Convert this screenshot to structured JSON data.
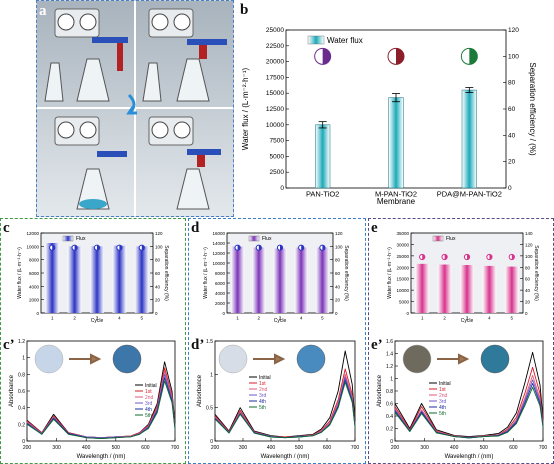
{
  "panel_labels": {
    "a": "a",
    "b": "b",
    "c": "c",
    "d": "d",
    "e": "e",
    "c2": "c’",
    "d2": "d’",
    "e2": "e’"
  },
  "chart_data": [
    {
      "id": "b",
      "type": "bar",
      "categories": [
        "PAN-TiO2",
        "M-PAN-TiO2",
        "PDA@M-PAN-TiO2"
      ],
      "series": [
        {
          "name": "Water flux",
          "values": [
            10000,
            14300,
            15500
          ],
          "errors": [
            500,
            650,
            400
          ]
        }
      ],
      "separation_efficiency": [
        100,
        100,
        100
      ],
      "xlabel": "Membrane",
      "ylabel": "Water flux / (L·m⁻²·h⁻¹)",
      "y2label": "Separation efficiency / (%)",
      "ylim": [
        0,
        25000
      ],
      "y2lim": [
        0,
        120
      ],
      "yticks": [
        0,
        2500,
        5000,
        7500,
        10000,
        12500,
        15000,
        17500,
        20000,
        22500,
        25000
      ],
      "y2ticks": [
        0,
        20,
        40,
        60,
        80,
        100,
        120
      ],
      "bar_color": "#1aa9b9"
    },
    {
      "id": "c",
      "type": "bar",
      "categories": [
        "1",
        "2",
        "3",
        "4",
        "5"
      ],
      "series": [
        {
          "name": "Flux",
          "values": [
            10500,
            10000,
            10000,
            10100,
            10000
          ]
        }
      ],
      "separation_efficiency": [
        98,
        98,
        98,
        98,
        98
      ],
      "xlabel": "Cycle",
      "ylabel": "Water flux / (L·m⁻²·h⁻¹)",
      "y2label": "Separation efficiency (%)",
      "ylim": [
        0,
        12000
      ],
      "y2lim": [
        0,
        120
      ],
      "yticks": [
        0,
        2000,
        4000,
        6000,
        8000,
        10000,
        12000
      ],
      "y2ticks": [
        0,
        20,
        40,
        60,
        80,
        100,
        120
      ],
      "bar_color": "#2c34c4"
    },
    {
      "id": "d",
      "type": "bar",
      "categories": [
        "1",
        "2",
        "3",
        "4",
        "5"
      ],
      "series": [
        {
          "name": "Flux",
          "values": [
            13300,
            13100,
            12900,
            13100,
            13100
          ]
        }
      ],
      "separation_efficiency": [
        98,
        98,
        98,
        98,
        98
      ],
      "xlabel": "Cycle",
      "ylabel": "Water flux / (L·m⁻²·h⁻¹)",
      "y2label": "Separation efficiency (%)",
      "ylim": [
        0,
        16000
      ],
      "y2lim": [
        0,
        120
      ],
      "yticks": [
        0,
        2000,
        4000,
        6000,
        8000,
        10000,
        12000,
        14000,
        16000
      ],
      "y2ticks": [
        0,
        20,
        40,
        60,
        80,
        100,
        120
      ],
      "bar_color": "#7b34b8"
    },
    {
      "id": "e",
      "type": "bar",
      "categories": [
        "1",
        "2",
        "3",
        "4",
        "5"
      ],
      "series": [
        {
          "name": "Flux",
          "values": [
            21500,
            21200,
            21000,
            20600,
            20300
          ]
        }
      ],
      "separation_efficiency": [
        98,
        98,
        98,
        98,
        98
      ],
      "xlabel": "Cycle",
      "ylabel": "Water flux / (L·m⁻²·h⁻¹)",
      "y2label": "Separation efficiency (%)",
      "ylim": [
        0,
        35000
      ],
      "y2lim": [
        0,
        140
      ],
      "yticks": [
        0,
        5000,
        10000,
        15000,
        20000,
        25000,
        30000,
        35000
      ],
      "y2ticks": [
        0,
        20,
        40,
        60,
        80,
        100,
        120,
        140
      ],
      "bar_color": "#d8328c"
    },
    {
      "id": "c2",
      "type": "line",
      "x": [
        200,
        250,
        290,
        340,
        400,
        450,
        500,
        550,
        580,
        610,
        640,
        665,
        690,
        700
      ],
      "xlim": [
        200,
        700
      ],
      "ylim": [
        0,
        1.2
      ],
      "xticks": [
        200,
        300,
        400,
        500,
        600,
        700
      ],
      "yticks": [
        0,
        0.2,
        0.4,
        0.6,
        0.8,
        1.0,
        1.2
      ],
      "xlabel": "Wavelength / (nm)",
      "ylabel": "Absorbance",
      "series": [
        {
          "name": "Initial",
          "color": "#000000",
          "values": [
            0.25,
            0.1,
            0.32,
            0.1,
            0.05,
            0.04,
            0.05,
            0.06,
            0.1,
            0.2,
            0.45,
            0.95,
            0.6,
            0.2
          ]
        },
        {
          "name": "1st",
          "color": "#d81b27",
          "values": [
            0.24,
            0.1,
            0.3,
            0.1,
            0.05,
            0.04,
            0.05,
            0.06,
            0.1,
            0.19,
            0.42,
            0.88,
            0.55,
            0.18
          ]
        },
        {
          "name": "2nd",
          "color": "#e05a7a",
          "values": [
            0.23,
            0.09,
            0.29,
            0.09,
            0.05,
            0.04,
            0.05,
            0.06,
            0.09,
            0.18,
            0.4,
            0.84,
            0.53,
            0.17
          ]
        },
        {
          "name": "3rd",
          "color": "#6e57c9",
          "values": [
            0.22,
            0.09,
            0.28,
            0.09,
            0.05,
            0.04,
            0.05,
            0.05,
            0.09,
            0.17,
            0.38,
            0.8,
            0.5,
            0.16
          ]
        },
        {
          "name": "4th",
          "color": "#1a2fa0",
          "values": [
            0.21,
            0.08,
            0.27,
            0.09,
            0.04,
            0.03,
            0.04,
            0.05,
            0.08,
            0.16,
            0.36,
            0.76,
            0.48,
            0.15
          ]
        },
        {
          "name": "5th",
          "color": "#0d6b2e",
          "values": [
            0.2,
            0.08,
            0.26,
            0.08,
            0.04,
            0.03,
            0.04,
            0.05,
            0.08,
            0.15,
            0.34,
            0.72,
            0.46,
            0.14
          ]
        }
      ]
    },
    {
      "id": "d2",
      "type": "line",
      "x": [
        200,
        250,
        290,
        340,
        400,
        450,
        500,
        550,
        580,
        610,
        640,
        665,
        690,
        700
      ],
      "xlim": [
        200,
        700
      ],
      "ylim": [
        0,
        1.5
      ],
      "xticks": [
        200,
        300,
        400,
        500,
        600,
        700
      ],
      "yticks": [
        0,
        0.5,
        1.0,
        1.5
      ],
      "xlabel": "Wavelength / (nm)",
      "ylabel": "Absorbance",
      "series": [
        {
          "name": "Initial",
          "color": "#000000",
          "values": [
            0.4,
            0.15,
            0.5,
            0.15,
            0.08,
            0.06,
            0.08,
            0.1,
            0.18,
            0.35,
            0.75,
            1.35,
            0.85,
            0.3
          ]
        },
        {
          "name": "1st",
          "color": "#d81b27",
          "values": [
            0.38,
            0.14,
            0.46,
            0.14,
            0.07,
            0.06,
            0.07,
            0.09,
            0.16,
            0.3,
            0.62,
            1.08,
            0.7,
            0.25
          ]
        },
        {
          "name": "2nd",
          "color": "#e05a7a",
          "values": [
            0.36,
            0.13,
            0.44,
            0.13,
            0.07,
            0.05,
            0.07,
            0.09,
            0.15,
            0.28,
            0.58,
            1.0,
            0.66,
            0.24
          ]
        },
        {
          "name": "3rd",
          "color": "#6e57c9",
          "values": [
            0.35,
            0.13,
            0.42,
            0.13,
            0.07,
            0.05,
            0.07,
            0.08,
            0.14,
            0.26,
            0.55,
            0.96,
            0.63,
            0.23
          ]
        },
        {
          "name": "4th",
          "color": "#1a2fa0",
          "values": [
            0.34,
            0.12,
            0.41,
            0.12,
            0.06,
            0.05,
            0.06,
            0.08,
            0.13,
            0.25,
            0.52,
            0.92,
            0.6,
            0.22
          ]
        },
        {
          "name": "5th",
          "color": "#0d6b2e",
          "values": [
            0.33,
            0.12,
            0.4,
            0.12,
            0.06,
            0.05,
            0.06,
            0.08,
            0.13,
            0.24,
            0.5,
            0.88,
            0.58,
            0.21
          ]
        }
      ]
    },
    {
      "id": "e2",
      "type": "line",
      "x": [
        200,
        250,
        290,
        340,
        400,
        450,
        500,
        550,
        580,
        610,
        640,
        665,
        690,
        700
      ],
      "xlim": [
        200,
        700
      ],
      "ylim": [
        0,
        1.6
      ],
      "xticks": [
        200,
        300,
        400,
        500,
        600,
        700
      ],
      "yticks": [
        0,
        0.2,
        0.4,
        0.6,
        0.8,
        1.0,
        1.2,
        1.4,
        1.6
      ],
      "xlabel": "Wavelength / (nm)",
      "ylabel": "Absorbance",
      "series": [
        {
          "name": "Initial",
          "color": "#000000",
          "values": [
            0.6,
            0.2,
            0.6,
            0.18,
            0.09,
            0.07,
            0.09,
            0.12,
            0.22,
            0.45,
            0.95,
            1.42,
            0.9,
            0.35
          ]
        },
        {
          "name": "1st",
          "color": "#d81b27",
          "values": [
            0.55,
            0.18,
            0.55,
            0.16,
            0.08,
            0.06,
            0.08,
            0.1,
            0.19,
            0.38,
            0.78,
            1.18,
            0.76,
            0.3
          ]
        },
        {
          "name": "2nd",
          "color": "#e05a7a",
          "values": [
            0.52,
            0.17,
            0.5,
            0.15,
            0.08,
            0.06,
            0.08,
            0.1,
            0.17,
            0.34,
            0.7,
            1.05,
            0.68,
            0.27
          ]
        },
        {
          "name": "3rd",
          "color": "#6e57c9",
          "values": [
            0.5,
            0.16,
            0.48,
            0.14,
            0.07,
            0.06,
            0.07,
            0.09,
            0.16,
            0.32,
            0.66,
            0.98,
            0.64,
            0.25
          ]
        },
        {
          "name": "4th",
          "color": "#1a2fa0",
          "values": [
            0.48,
            0.16,
            0.46,
            0.14,
            0.07,
            0.05,
            0.07,
            0.09,
            0.15,
            0.3,
            0.62,
            0.92,
            0.6,
            0.24
          ]
        },
        {
          "name": "5th",
          "color": "#0d6b2e",
          "values": [
            0.46,
            0.15,
            0.44,
            0.13,
            0.07,
            0.05,
            0.07,
            0.08,
            0.14,
            0.28,
            0.58,
            0.86,
            0.56,
            0.22
          ]
        }
      ]
    }
  ]
}
